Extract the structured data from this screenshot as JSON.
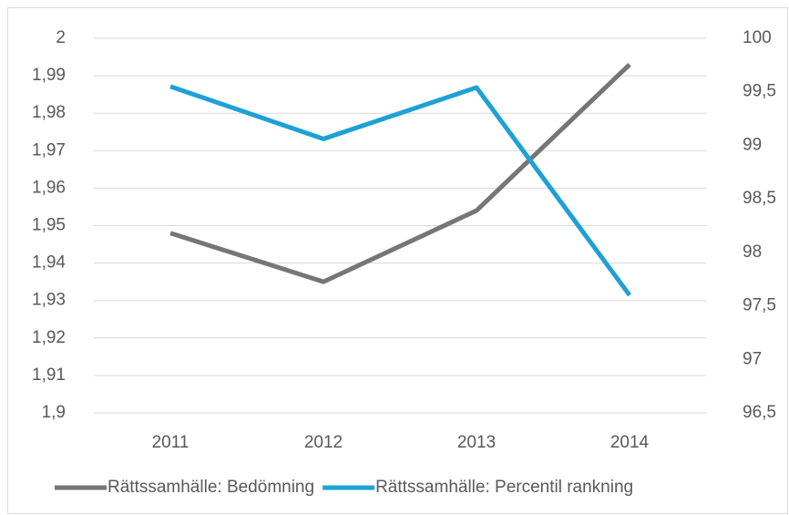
{
  "chart_data": {
    "type": "line",
    "categories": [
      "2011",
      "2012",
      "2013",
      "2014"
    ],
    "series": [
      {
        "name": "Rättssamhälle: Bedömning",
        "color": "#767676",
        "values": [
          1.948,
          1.935,
          1.954,
          1.993
        ]
      },
      {
        "name": "Rättssamhälle: Percentil rankning",
        "color": "#1ea1d6",
        "axis": "y2",
        "values": [
          99.55,
          99.06,
          99.54,
          97.6
        ]
      }
    ],
    "ylim": [
      1.9,
      2
    ],
    "yticks": [
      {
        "value": 1.9,
        "label": "1,9"
      },
      {
        "value": 1.91,
        "label": "1,91"
      },
      {
        "value": 1.92,
        "label": "1,92"
      },
      {
        "value": 1.93,
        "label": "1,93"
      },
      {
        "value": 1.94,
        "label": "1,94"
      },
      {
        "value": 1.95,
        "label": "1,95"
      },
      {
        "value": 1.96,
        "label": "1,96"
      },
      {
        "value": 1.97,
        "label": "1,97"
      },
      {
        "value": 1.98,
        "label": "1,98"
      },
      {
        "value": 1.99,
        "label": "1,99"
      },
      2
    ],
    "y2lim": [
      96.5,
      100
    ],
    "y2ticks": [
      {
        "value": 96.5,
        "label": "96,5"
      },
      97,
      {
        "value": 97.5,
        "label": "97,5"
      },
      98,
      {
        "value": 98.5,
        "label": "98,5"
      },
      99,
      {
        "value": 99.5,
        "label": "99,5"
      },
      100
    ],
    "grid": true,
    "legend": "bottom"
  }
}
